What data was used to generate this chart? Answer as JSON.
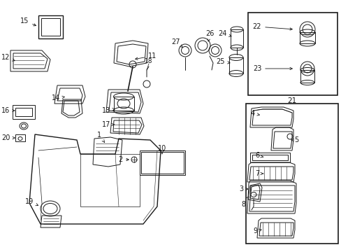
{
  "bg_color": "#ffffff",
  "line_color": "#1a1a1a",
  "fig_width": 4.89,
  "fig_height": 3.6,
  "dpi": 100,
  "lw": 0.7,
  "fs": 6.5
}
